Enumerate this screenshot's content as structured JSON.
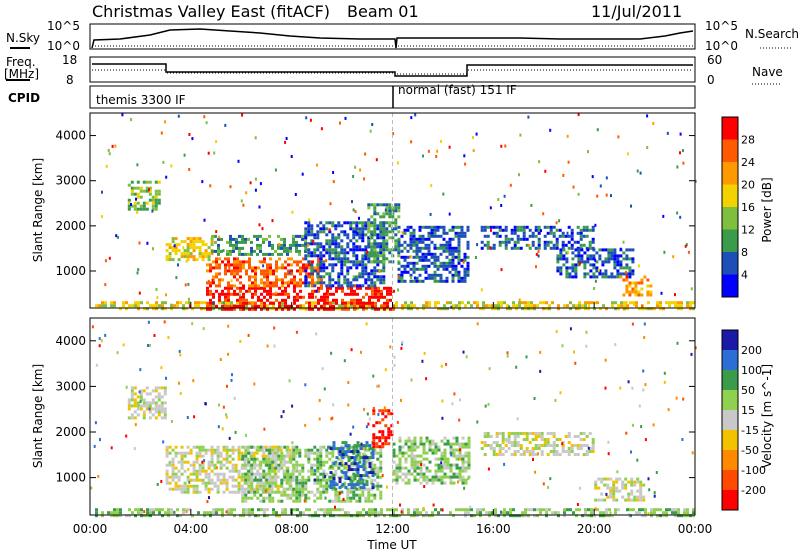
{
  "header": {
    "station": "Christmas Valley East (fitACF)",
    "beam": "Beam 01",
    "date": "11/Jul/2011"
  },
  "top_panels": {
    "nsky_label": "N.Sky",
    "nsearch_label": "N.Search",
    "noise_ticks": [
      "10^5",
      "10^0"
    ],
    "freq_label_line1": "Freq.",
    "freq_label_line2": "[MHz]",
    "freq_ticks": [
      "18",
      "8"
    ],
    "nave_label": "Nave",
    "nave_ticks": [
      "60",
      "0"
    ],
    "cpid_label": "CPID",
    "cpid_segments": [
      {
        "label": "themis 3300 IF",
        "start_hour": 0,
        "end_hour": 12
      },
      {
        "label": "normal (fast) 151 IF",
        "start_hour": 12,
        "end_hour": 24
      }
    ]
  },
  "axes": {
    "ylabel": "Slant Range [km]",
    "yticks": [
      "1000",
      "2000",
      "3000",
      "4000"
    ],
    "xticks": [
      "00:00",
      "04:00",
      "08:00",
      "12:00",
      "16:00",
      "20:00",
      "00:00"
    ],
    "xlabel": "Time UT"
  },
  "colors": {
    "power": [
      "#0000ff",
      "#1d4fb8",
      "#3a9c4a",
      "#7fbf3f",
      "#f2d200",
      "#ff9900",
      "#ff5a00",
      "#ff0000"
    ],
    "velocity": [
      "#1a1aa6",
      "#2a6ed6",
      "#3a9c4a",
      "#8fd14f",
      "#c8c8c8",
      "#f2c200",
      "#ff8a00",
      "#ff4a00",
      "#ff0000"
    ]
  },
  "chart_data": [
    {
      "type": "heatmap",
      "title": "Power",
      "colorbar_label": "Power [dB]",
      "colorbar_ticks": [
        "4",
        "8",
        "12",
        "16",
        "20",
        "24",
        "28"
      ],
      "x_range_hours": [
        0,
        24
      ],
      "ylim": [
        180,
        4500
      ],
      "regions": [
        {
          "t0": 0.2,
          "t1": 24,
          "r0": 180,
          "r1": 330,
          "level": 4
        },
        {
          "t0": 4.6,
          "t1": 12,
          "r0": 180,
          "r1": 650,
          "level": 7
        },
        {
          "t0": 4.6,
          "t1": 9.2,
          "r0": 650,
          "r1": 1300,
          "level": 6
        },
        {
          "t0": 3.0,
          "t1": 4.8,
          "r0": 1250,
          "r1": 1750,
          "level": 4
        },
        {
          "t0": 4.8,
          "t1": 8.5,
          "r0": 1400,
          "r1": 1800,
          "level": 2
        },
        {
          "t0": 8.5,
          "t1": 11.6,
          "r0": 700,
          "r1": 2100,
          "level": 1
        },
        {
          "t0": 11.0,
          "t1": 12.2,
          "r0": 1200,
          "r1": 2500,
          "level": 2
        },
        {
          "t0": 12.2,
          "t1": 15.0,
          "r0": 800,
          "r1": 2000,
          "level": 1
        },
        {
          "t0": 1.5,
          "t1": 2.8,
          "r0": 2400,
          "r1": 3000,
          "level": 3
        },
        {
          "t0": 15.5,
          "t1": 20.0,
          "r0": 1500,
          "r1": 2000,
          "level": 1
        },
        {
          "t0": 18.5,
          "t1": 21.5,
          "r0": 900,
          "r1": 1500,
          "level": 1
        },
        {
          "t0": 21.0,
          "t1": 22.3,
          "r0": 500,
          "r1": 900,
          "level": 5
        }
      ]
    },
    {
      "type": "heatmap",
      "title": "Velocity",
      "colorbar_label": "Velocity [m s^-1]",
      "colorbar_ticks": [
        "200",
        "100",
        "50",
        "15",
        "-15",
        "-50",
        "-100",
        "-200"
      ],
      "x_range_hours": [
        0,
        24
      ],
      "ylim": [
        180,
        4500
      ],
      "regions": [
        {
          "t0": 0.2,
          "t1": 24,
          "r0": 180,
          "r1": 330,
          "level": 3
        },
        {
          "t0": 1.5,
          "t1": 3.0,
          "r0": 2300,
          "r1": 3000,
          "level": 4
        },
        {
          "t0": 3.0,
          "t1": 8.0,
          "r0": 700,
          "r1": 1700,
          "level": 4
        },
        {
          "t0": 6.0,
          "t1": 11.5,
          "r0": 500,
          "r1": 1700,
          "level": 3
        },
        {
          "t0": 9.5,
          "t1": 11.2,
          "r0": 800,
          "r1": 1800,
          "level": 1
        },
        {
          "t0": 11.2,
          "t1": 12.0,
          "r0": 1700,
          "r1": 2500,
          "level": 8
        },
        {
          "t0": 12.0,
          "t1": 15.0,
          "r0": 900,
          "r1": 1900,
          "level": 3
        },
        {
          "t0": 15.5,
          "t1": 20.0,
          "r0": 1500,
          "r1": 2000,
          "level": 4
        },
        {
          "t0": 20.0,
          "t1": 22.0,
          "r0": 500,
          "r1": 1000,
          "level": 4
        }
      ]
    }
  ]
}
